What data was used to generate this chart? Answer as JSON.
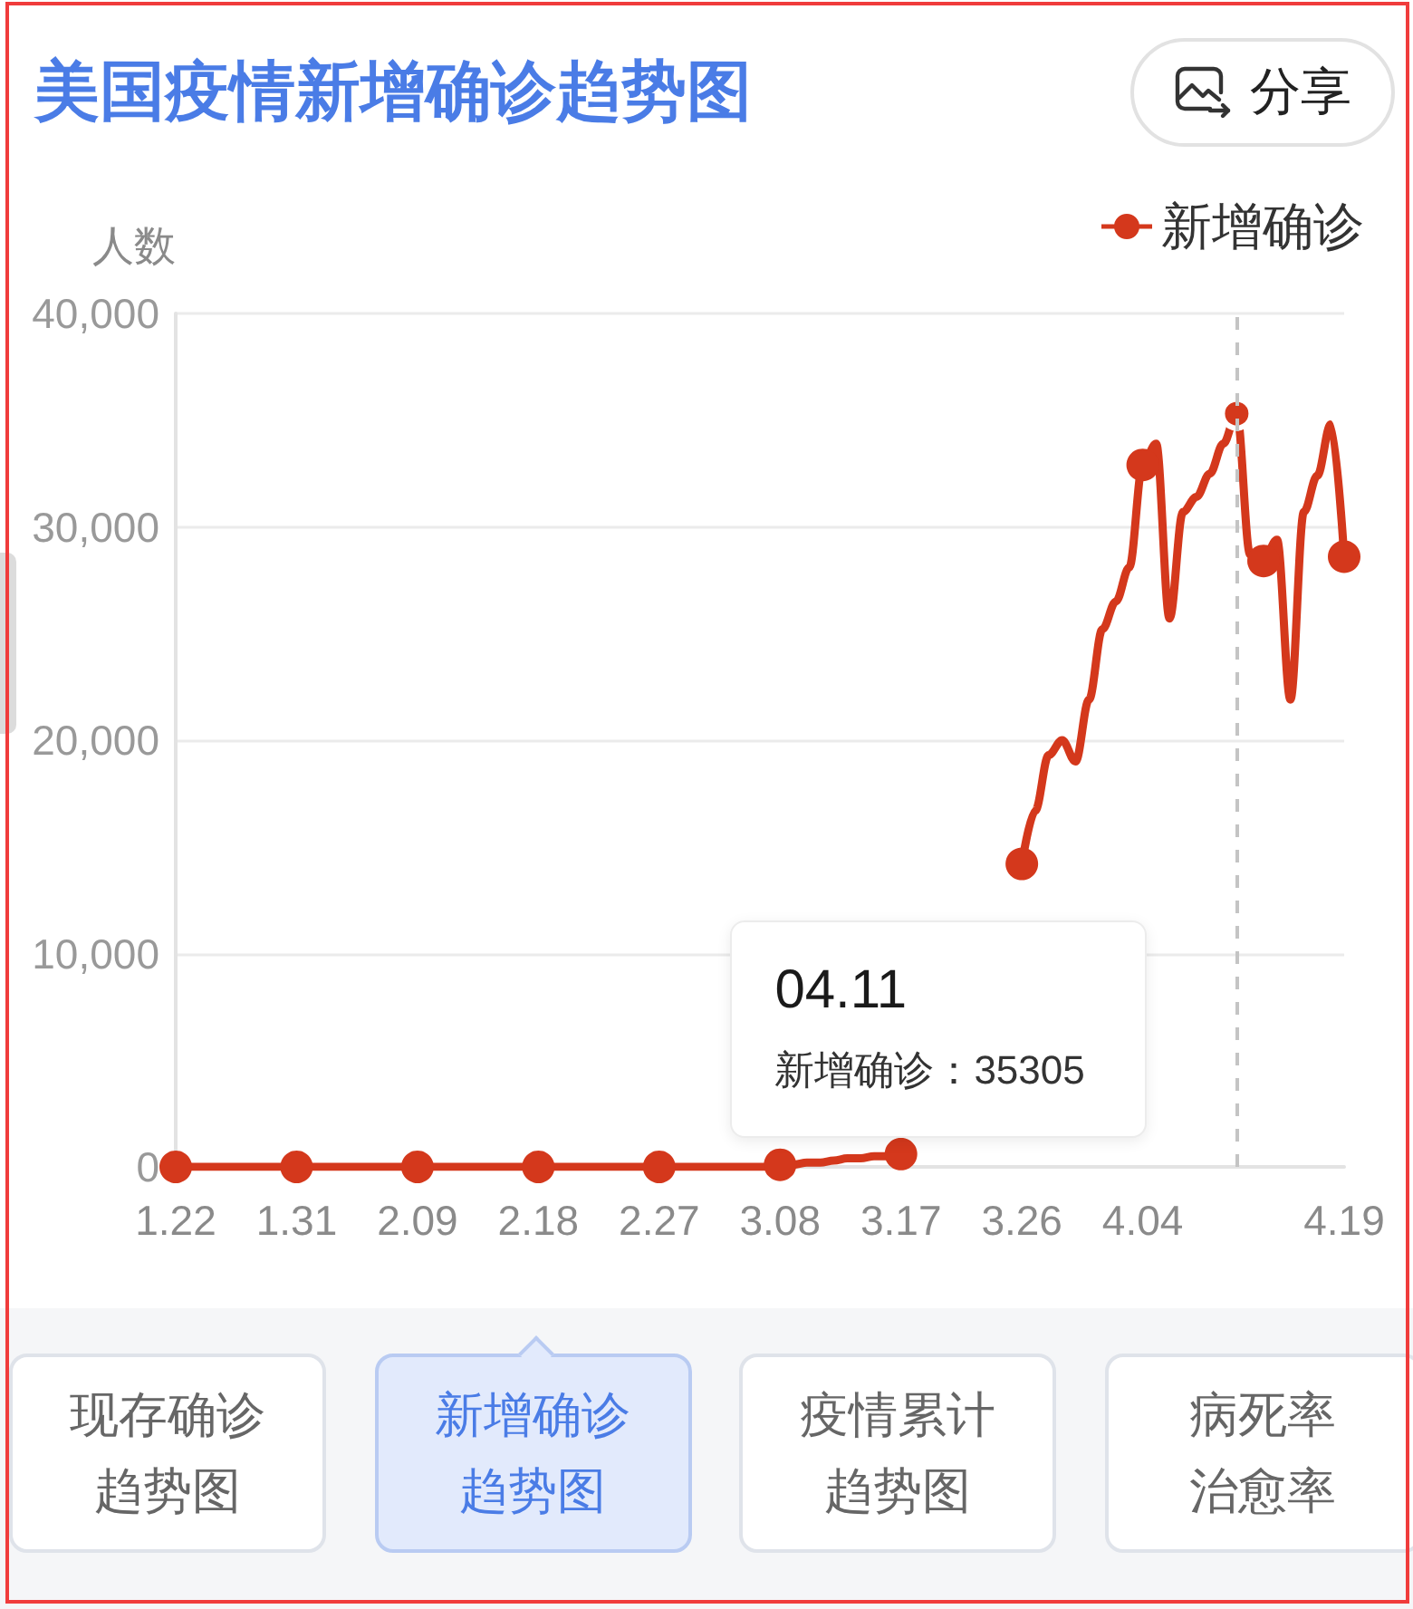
{
  "chart_data": {
    "type": "line",
    "title": "美国疫情新增确诊趋势图",
    "ylabel": "人数",
    "categories": [
      "1.22",
      null,
      null,
      null,
      null,
      null,
      null,
      null,
      null,
      "1.31",
      null,
      null,
      null,
      null,
      null,
      null,
      null,
      null,
      "2.09",
      null,
      null,
      null,
      null,
      null,
      null,
      null,
      null,
      "2.18",
      null,
      null,
      null,
      null,
      null,
      null,
      null,
      null,
      "2.27",
      null,
      null,
      null,
      null,
      null,
      null,
      null,
      null,
      "3.08",
      null,
      null,
      null,
      null,
      null,
      null,
      null,
      null,
      "3.17",
      null,
      null,
      null,
      null,
      null,
      null,
      null,
      null,
      "3.26",
      null,
      null,
      null,
      null,
      null,
      null,
      null,
      null,
      "4.04",
      null,
      null,
      null,
      null,
      null,
      null,
      null,
      null,
      null,
      null,
      null,
      null,
      null,
      null,
      "4.19"
    ],
    "series": [
      {
        "name": "新增确诊",
        "color": "#d4381c",
        "values": [
          0,
          0,
          0,
          0,
          0,
          0,
          0,
          0,
          0,
          0,
          0,
          0,
          0,
          0,
          0,
          0,
          0,
          0,
          0,
          0,
          0,
          0,
          0,
          0,
          0,
          0,
          0,
          0,
          0,
          0,
          0,
          0,
          0,
          0,
          0,
          0,
          0,
          0,
          0,
          0,
          0,
          0,
          0,
          0,
          0,
          100,
          100,
          200,
          200,
          300,
          400,
          400,
          500,
          500,
          600,
          null,
          null,
          null,
          null,
          null,
          null,
          null,
          null,
          14200,
          16700,
          19300,
          20000,
          19000,
          21900,
          25200,
          26500,
          28100,
          32900,
          33900,
          25700,
          30700,
          31400,
          32500,
          33900,
          35305,
          28700,
          28400,
          29400,
          21900,
          30700,
          32400,
          34800,
          28600
        ]
      },
      {
        "type": "scatter",
        "color": "#d4381c",
        "values": [
          0,
          null,
          null,
          null,
          null,
          null,
          null,
          null,
          null,
          0,
          null,
          null,
          null,
          null,
          null,
          null,
          null,
          null,
          0,
          null,
          null,
          null,
          null,
          null,
          null,
          null,
          null,
          0,
          null,
          null,
          null,
          null,
          null,
          null,
          null,
          null,
          0,
          null,
          null,
          null,
          null,
          null,
          null,
          null,
          null,
          100,
          null,
          null,
          null,
          null,
          null,
          null,
          null,
          null,
          600,
          null,
          null,
          null,
          null,
          null,
          null,
          null,
          null,
          14200,
          null,
          null,
          null,
          null,
          null,
          null,
          null,
          null,
          32900,
          null,
          null,
          null,
          null,
          null,
          null,
          35305,
          null,
          28400,
          null,
          null,
          null,
          null,
          null,
          28600
        ]
      }
    ],
    "ylim": [
      0,
      40000
    ],
    "yticks": [
      0,
      {
        "value": 10000,
        "label": "10,000"
      },
      {
        "value": 20000,
        "label": "20,000"
      },
      {
        "value": 30000,
        "label": "30,000"
      },
      {
        "value": 40000,
        "label": "40,000"
      }
    ],
    "grid": "y",
    "legend": "top right",
    "line_style": "solid",
    "annotations": [
      "04.11\n新增确诊：35305",
      "分享",
      "现存确诊趋势图",
      "新增确诊趋势图",
      "疫情累计趋势图",
      "病死率治愈率"
    ]
  }
}
